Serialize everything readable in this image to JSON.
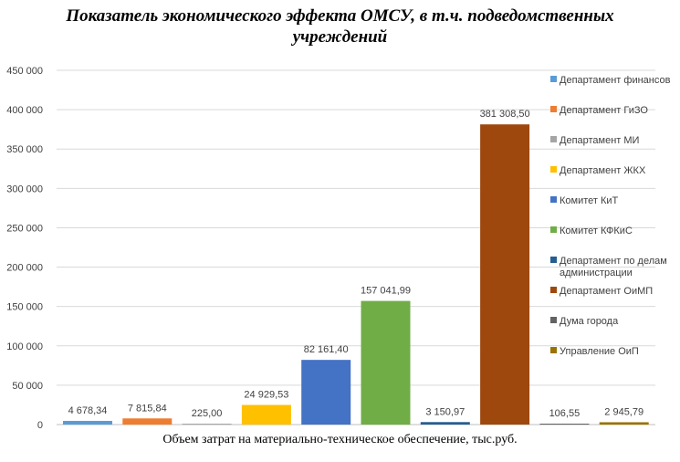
{
  "chart_data": {
    "type": "bar",
    "title_lines": [
      "Показатель экономического эффекта ОМСУ, в т.ч. подведомственных",
      "учреждений"
    ],
    "xlabel": "Объем затрат на материально-техническое обеспечение, тыс.руб.",
    "ylabel": "",
    "ylim": [
      0,
      450000
    ],
    "yticks": [
      0,
      50000,
      100000,
      150000,
      200000,
      250000,
      300000,
      350000,
      400000,
      450000
    ],
    "ytick_labels": [
      "0",
      "50 000",
      "100 000",
      "150 000",
      "200 000",
      "250 000",
      "300 000",
      "350 000",
      "400 000",
      "450 000"
    ],
    "grid": true,
    "legend_position": "right",
    "series": [
      {
        "name": "Департамент финансов",
        "value": 4678.34,
        "label": "4 678,34",
        "color": "#5b9bd5"
      },
      {
        "name": "Департамент ГиЗО",
        "value": 7815.84,
        "label": "7 815,84",
        "color": "#ed7d31"
      },
      {
        "name": "Департамент МИ",
        "value": 225.0,
        "label": "225,00",
        "color": "#a5a5a5"
      },
      {
        "name": "Департамент ЖКХ",
        "value": 24929.53,
        "label": "24 929,53",
        "color": "#ffc000"
      },
      {
        "name": "Комитет КиТ",
        "value": 82161.4,
        "label": "82 161,40",
        "color": "#4472c4"
      },
      {
        "name": "Комитет КФКиС",
        "value": 157041.99,
        "label": "157 041,99",
        "color": "#70ad47"
      },
      {
        "name": "Департамент по делам администрации",
        "legend_lines": [
          "Департамент по делам",
          "администрации"
        ],
        "value": 3150.97,
        "label": "3 150,97",
        "color": "#255e91"
      },
      {
        "name": "Департамент ОиМП",
        "value": 381308.5,
        "label": "381 308,50",
        "color": "#9e480e"
      },
      {
        "name": "Дума города",
        "value": 106.55,
        "label": "106,55",
        "color": "#636363"
      },
      {
        "name": "Управление ОиП",
        "value": 2945.79,
        "label": "2 945,79",
        "color": "#997300"
      }
    ]
  }
}
